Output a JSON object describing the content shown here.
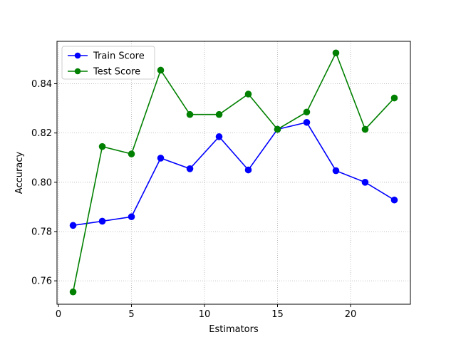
{
  "chart_data": {
    "type": "line",
    "title": "",
    "xlabel": "Estimators",
    "ylabel": "Accuracy",
    "xlim": [
      -0.1,
      24.1
    ],
    "ylim": [
      0.7505,
      0.8572
    ],
    "xticks": [
      0,
      5,
      10,
      15,
      20
    ],
    "xtick_labels": [
      "0",
      "5",
      "10",
      "15",
      "20"
    ],
    "yticks": [
      0.76,
      0.78,
      0.8,
      0.82,
      0.84
    ],
    "ytick_labels": [
      "0.76",
      "0.78",
      "0.80",
      "0.82",
      "0.84"
    ],
    "grid": true,
    "legend_position": "top-left",
    "x": [
      1,
      3,
      5,
      7,
      9,
      11,
      13,
      15,
      17,
      19,
      21,
      23
    ],
    "series": [
      {
        "name": "Train Score",
        "color": "#0000ff",
        "marker": "circle",
        "values": [
          0.7825,
          0.7842,
          0.786,
          0.8098,
          0.8055,
          0.8185,
          0.805,
          0.8215,
          0.8243,
          0.8047,
          0.8,
          0.7928
        ]
      },
      {
        "name": "Test Score",
        "color": "#008000",
        "marker": "circle",
        "values": [
          0.7555,
          0.8145,
          0.8115,
          0.8455,
          0.8275,
          0.8275,
          0.8358,
          0.8215,
          0.8285,
          0.8525,
          0.8215,
          0.8342
        ]
      }
    ]
  }
}
